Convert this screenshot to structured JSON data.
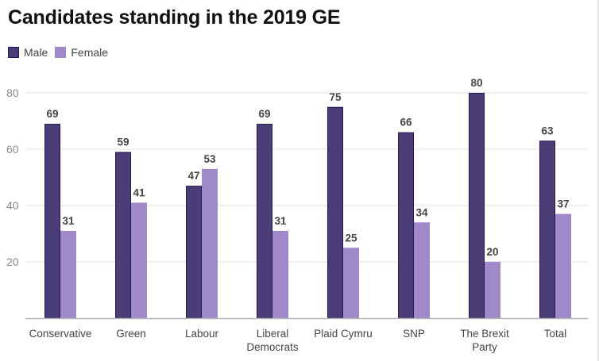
{
  "chart_data": {
    "type": "bar",
    "title": "Candidates standing in the 2019 GE",
    "xlabel": "",
    "ylabel": "",
    "ylim": [
      0,
      80
    ],
    "yticks": [
      20,
      40,
      60,
      80
    ],
    "grid": true,
    "legend_position": "top-left",
    "categories": [
      [
        "Conservative"
      ],
      [
        "Green"
      ],
      [
        "Labour"
      ],
      [
        "Liberal",
        "Democrats"
      ],
      [
        "Plaid Cymru"
      ],
      [
        "SNP"
      ],
      [
        "The Brexit",
        "Party"
      ],
      [
        "Total"
      ]
    ],
    "series": [
      {
        "name": "Male",
        "color": "#4b3d75",
        "edge": "#2a1459",
        "values": [
          69,
          59,
          47,
          69,
          75,
          66,
          80,
          63
        ]
      },
      {
        "name": "Female",
        "color": "#9f89c9",
        "edge": "#9f89c9",
        "values": [
          31,
          41,
          53,
          31,
          25,
          34,
          20,
          37
        ]
      }
    ]
  }
}
